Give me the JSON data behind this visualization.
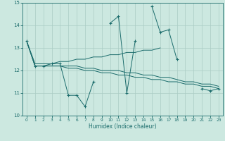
{
  "title": "",
  "xlabel": "Humidex (Indice chaleur)",
  "xlim": [
    -0.5,
    23.5
  ],
  "ylim": [
    10,
    15
  ],
  "yticks": [
    10,
    11,
    12,
    13,
    14,
    15
  ],
  "xticks": [
    0,
    1,
    2,
    3,
    4,
    5,
    6,
    7,
    8,
    9,
    10,
    11,
    12,
    13,
    14,
    15,
    16,
    17,
    18,
    19,
    20,
    21,
    22,
    23
  ],
  "bg_color": "#cce8e0",
  "grid_color": "#aaccc4",
  "line_color": "#1a6b6b",
  "series": [
    [
      13.3,
      12.2,
      12.2,
      12.3,
      12.3,
      10.9,
      10.9,
      10.4,
      11.5,
      null,
      14.1,
      14.4,
      11.0,
      13.3,
      null,
      14.85,
      13.7,
      13.8,
      12.5,
      null,
      null,
      11.2,
      11.1,
      11.2
    ],
    [
      13.3,
      12.2,
      12.2,
      12.2,
      12.2,
      12.2,
      12.2,
      12.1,
      12.1,
      12.0,
      12.0,
      12.0,
      11.9,
      11.9,
      11.8,
      11.8,
      11.7,
      11.7,
      11.6,
      11.5,
      11.5,
      11.4,
      11.4,
      11.3
    ],
    [
      13.3,
      12.3,
      12.3,
      12.3,
      12.4,
      12.4,
      12.5,
      12.5,
      12.6,
      12.6,
      12.7,
      12.7,
      12.8,
      12.8,
      12.9,
      12.9,
      13.0,
      null,
      null,
      null,
      null,
      null,
      null,
      null
    ],
    [
      13.3,
      12.2,
      12.2,
      12.2,
      12.2,
      12.1,
      12.1,
      12.0,
      12.0,
      11.9,
      11.9,
      11.8,
      11.8,
      11.7,
      11.7,
      11.6,
      11.6,
      11.5,
      11.5,
      11.4,
      11.4,
      11.3,
      11.3,
      11.2
    ]
  ]
}
